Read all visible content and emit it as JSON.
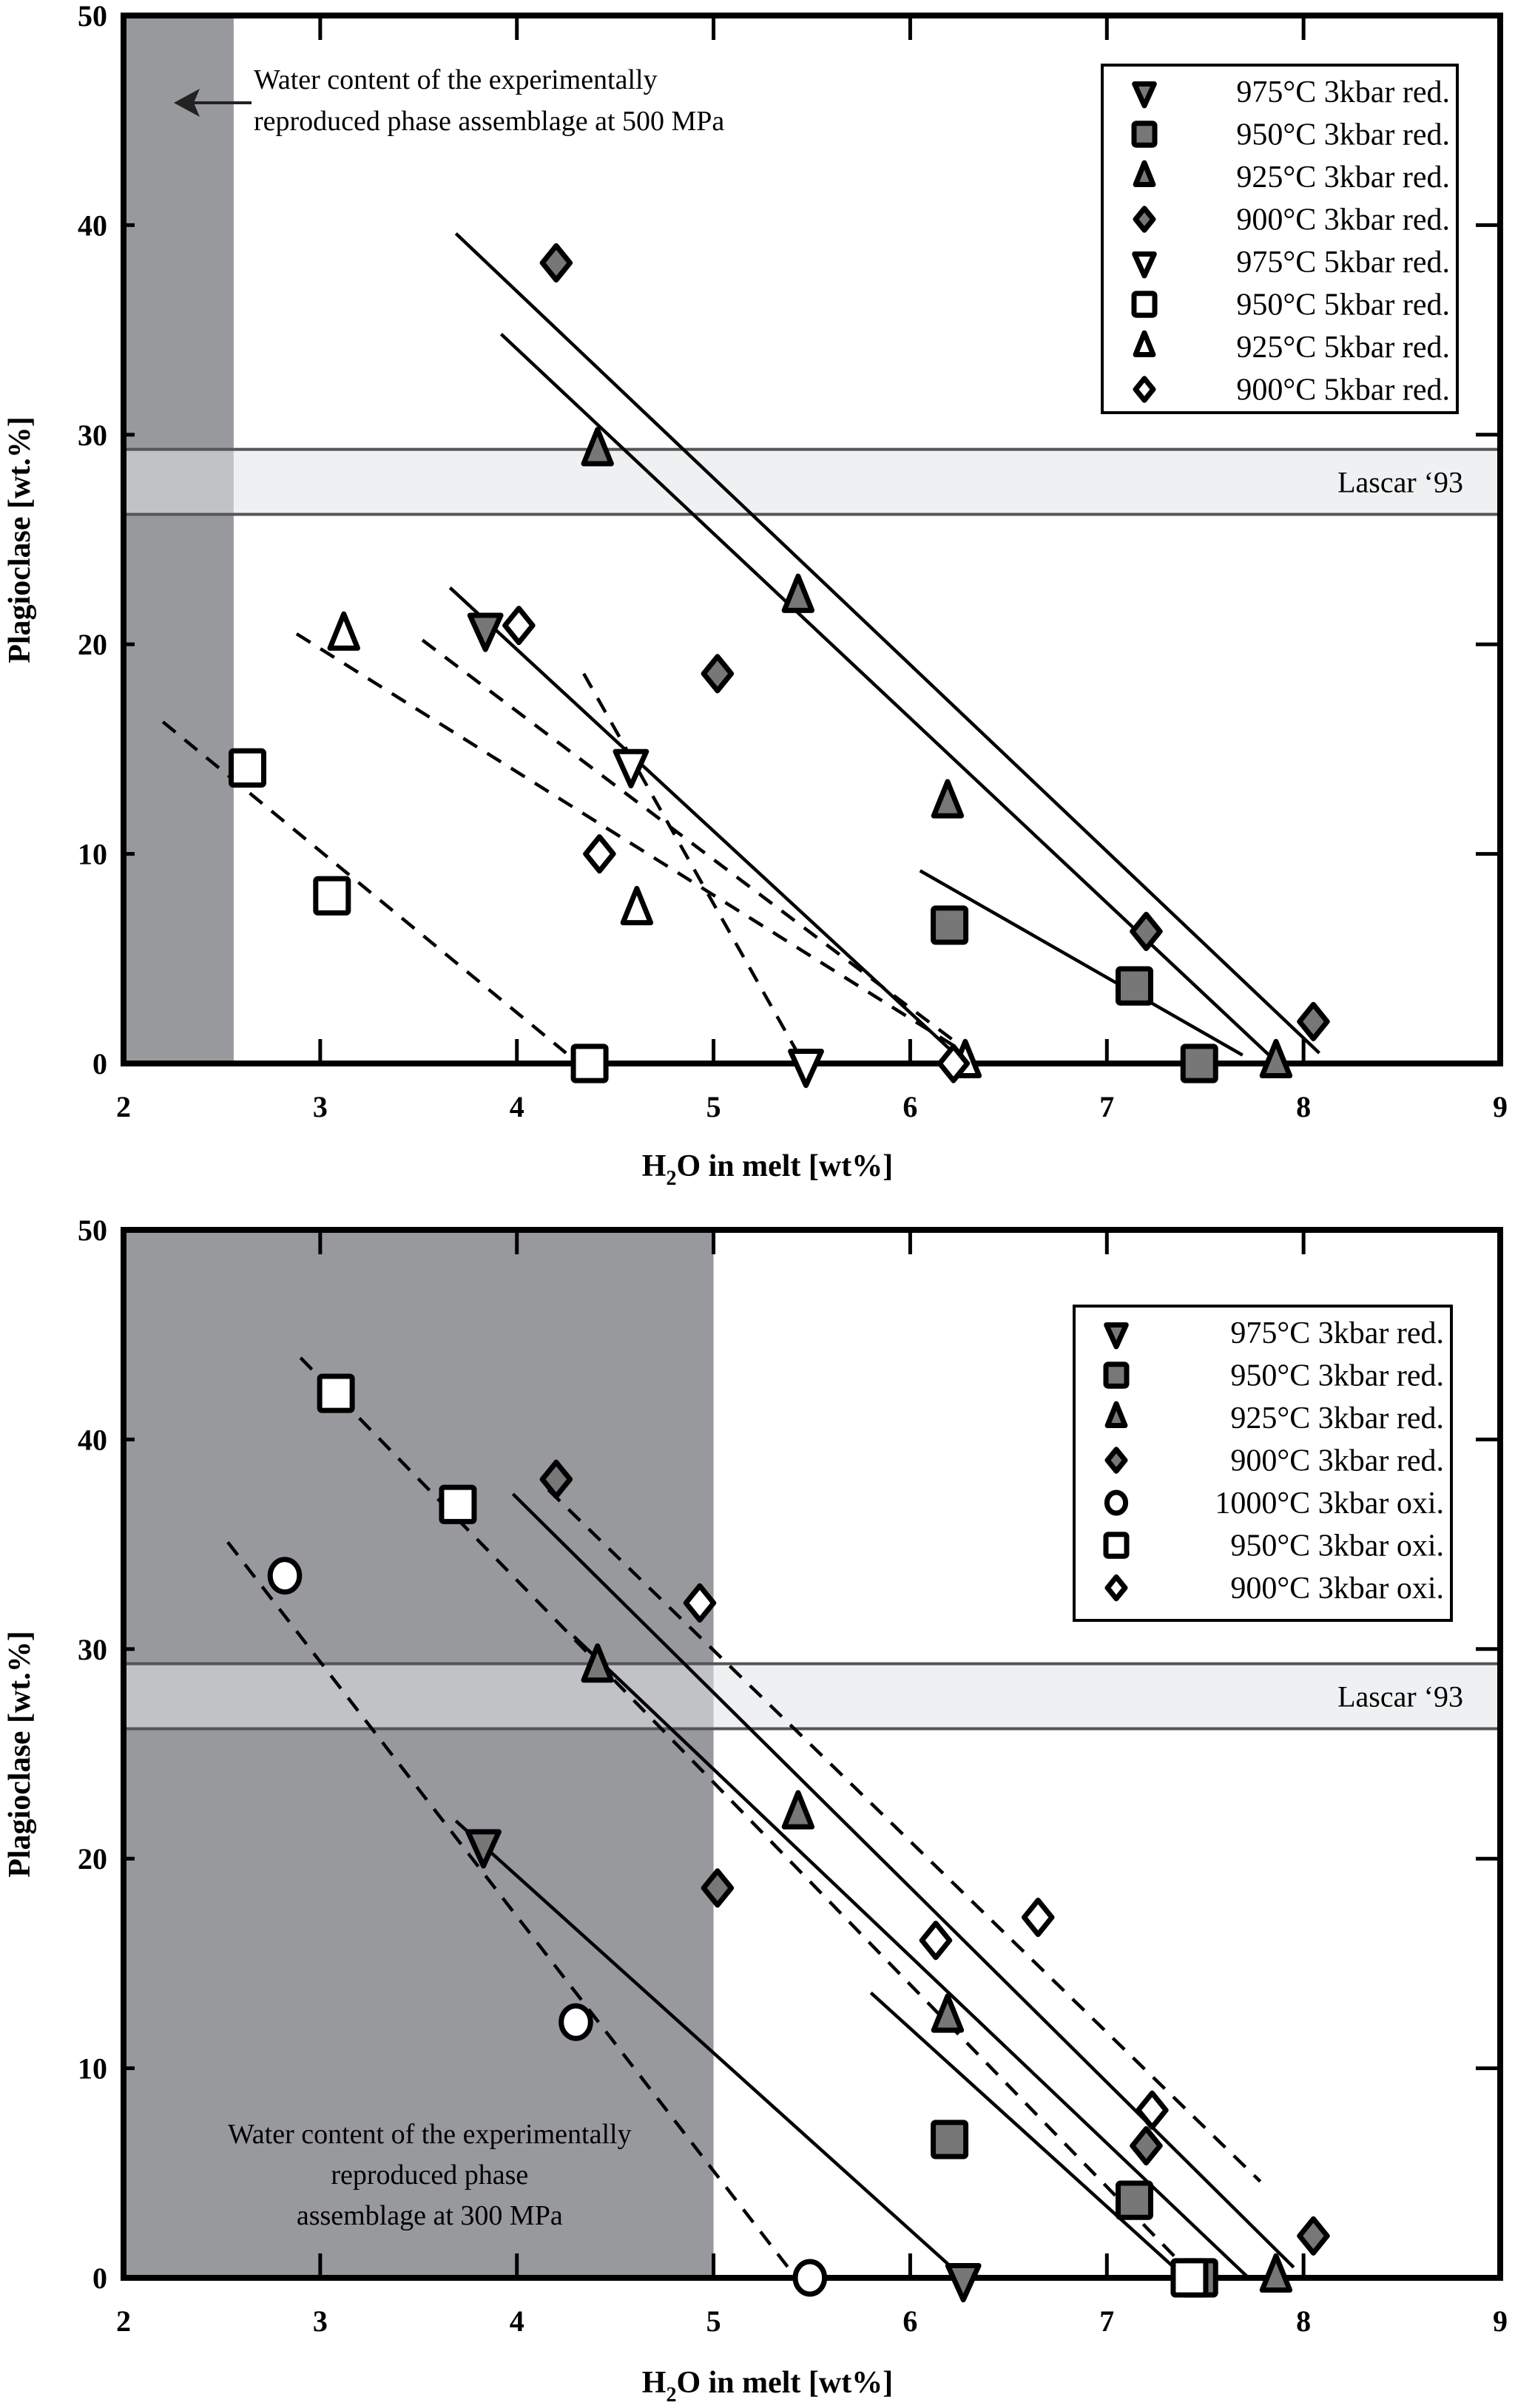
{
  "colors": {
    "water_band": "#98999d",
    "lascar_band": "#e2e3e5",
    "lascar_edge": "#555555",
    "filled_marker": "#777777",
    "open_marker": "#ffffff",
    "stroke": "#000000"
  },
  "chart_data": [
    {
      "type": "scatter",
      "title": "",
      "xlabel": "H2O in melt [wt%]",
      "xlabel_main": "H",
      "xlabel_sub": "2",
      "xlabel_rest": "O in melt [wt%]",
      "ylabel": "Plagioclase [wt.%]",
      "xlim": [
        2,
        9
      ],
      "ylim": [
        0,
        50
      ],
      "xticks": [
        "2",
        "3",
        "4",
        "5",
        "6",
        "7",
        "8",
        "9"
      ],
      "yticks": [
        "0",
        "10",
        "20",
        "30",
        "40",
        "50"
      ],
      "legend_position": "top-right",
      "water_band": {
        "x_range": [
          2,
          2.56
        ],
        "label_line1": "Water content of the experimentally",
        "label_line2": "reproduced phase assemblage at 500 MPa"
      },
      "lascar_band": {
        "y_range": [
          26.2,
          29.3
        ],
        "label": "Lascar ‘93"
      },
      "series": [
        {
          "name": "975°C 3kbar red.",
          "marker": "triangle-down",
          "fill": "filled",
          "points": [
            [
              3.84,
              20.8
            ]
          ]
        },
        {
          "name": "950°C 3kbar red.",
          "marker": "square",
          "fill": "filled",
          "points": [
            [
              6.2,
              6.6
            ],
            [
              7.14,
              3.7
            ],
            [
              7.47,
              0
            ]
          ]
        },
        {
          "name": "925°C 3kbar red.",
          "marker": "triangle-up",
          "fill": "filled",
          "points": [
            [
              4.41,
              29.2
            ],
            [
              5.43,
              22.2
            ],
            [
              6.19,
              12.4
            ],
            [
              7.86,
              0
            ]
          ]
        },
        {
          "name": "900°C 3kbar red.",
          "marker": "diamond",
          "fill": "filled",
          "points": [
            [
              4.2,
              38.2
            ],
            [
              5.02,
              18.6
            ],
            [
              7.2,
              6.3
            ],
            [
              8.05,
              2
            ]
          ]
        },
        {
          "name": "975°C 5kbar red.",
          "marker": "triangle-down",
          "fill": "open",
          "points": [
            [
              4.58,
              14.3
            ],
            [
              5.47,
              0
            ]
          ]
        },
        {
          "name": "950°C 5kbar red.",
          "marker": "square",
          "fill": "open",
          "points": [
            [
              2.63,
              14.1
            ],
            [
              3.06,
              8
            ],
            [
              4.37,
              0
            ]
          ]
        },
        {
          "name": "925°C 5kbar red.",
          "marker": "triangle-up",
          "fill": "open",
          "points": [
            [
              3.12,
              20.4
            ],
            [
              4.61,
              7.3
            ],
            [
              6.28,
              0
            ]
          ]
        },
        {
          "name": "900°C 5kbar red.",
          "marker": "diamond",
          "fill": "open",
          "points": [
            [
              4.01,
              20.9
            ],
            [
              4.42,
              10
            ],
            [
              6.22,
              0
            ]
          ]
        }
      ],
      "trend_lines": [
        {
          "style": "solid",
          "from": [
            3.69,
            39.6
          ],
          "to": [
            8.08,
            0.5
          ]
        },
        {
          "style": "solid",
          "from": [
            3.92,
            34.8
          ],
          "to": [
            7.87,
            0
          ]
        },
        {
          "style": "solid",
          "from": [
            3.66,
            22.7
          ],
          "to": [
            6.28,
            0
          ]
        },
        {
          "style": "solid",
          "from": [
            6.05,
            9.2
          ],
          "to": [
            7.69,
            0.4
          ]
        },
        {
          "style": "dashed",
          "from": [
            2.2,
            16.3
          ],
          "to": [
            4.25,
            0.5
          ]
        },
        {
          "style": "dashed",
          "from": [
            2.88,
            20.5
          ],
          "to": [
            6.23,
            0.8
          ]
        },
        {
          "style": "dashed",
          "from": [
            3.52,
            20.2
          ],
          "to": [
            6.22,
            1.1
          ]
        },
        {
          "style": "dashed",
          "from": [
            4.34,
            18.6
          ],
          "to": [
            5.44,
            0.3
          ]
        }
      ]
    },
    {
      "type": "scatter",
      "title": "",
      "xlabel": "H2O in melt [wt%]",
      "xlabel_main": "H",
      "xlabel_sub": "2",
      "xlabel_rest": "O in melt [wt%]",
      "ylabel": "Plagioclase [wt.%]",
      "xlim": [
        2,
        9
      ],
      "ylim": [
        0,
        50
      ],
      "xticks": [
        "2",
        "3",
        "4",
        "5",
        "6",
        "7",
        "8",
        "9"
      ],
      "yticks": [
        "0",
        "10",
        "20",
        "30",
        "40",
        "50"
      ],
      "legend_position": "top-right",
      "water_band": {
        "x_range": [
          2,
          5
        ],
        "label_line1": "Water content of the experimentally",
        "label_line2": "reproduced phase",
        "label_line3": "assemblage at 300 MPa"
      },
      "lascar_band": {
        "y_range": [
          26.2,
          29.3
        ],
        "label": "Lascar ‘93"
      },
      "series": [
        {
          "name": "975°C 3kbar red.",
          "marker": "triangle-down",
          "fill": "filled",
          "points": [
            [
              3.83,
              20.7
            ],
            [
              6.27,
              0
            ]
          ]
        },
        {
          "name": "950°C 3kbar red.",
          "marker": "square",
          "fill": "filled",
          "points": [
            [
              6.2,
              6.6
            ],
            [
              7.14,
              3.7
            ],
            [
              7.47,
              0
            ]
          ]
        },
        {
          "name": "925°C 3kbar red.",
          "marker": "triangle-up",
          "fill": "filled",
          "points": [
            [
              4.41,
              29.1
            ],
            [
              5.43,
              22.1
            ],
            [
              6.19,
              12.4
            ],
            [
              7.86,
              0
            ]
          ]
        },
        {
          "name": "900°C 3kbar red.",
          "marker": "diamond",
          "fill": "filled",
          "points": [
            [
              4.2,
              38.1
            ],
            [
              5.02,
              18.6
            ],
            [
              7.2,
              6.3
            ],
            [
              8.05,
              2
            ]
          ]
        },
        {
          "name": "1000°C 3kbar oxi.",
          "marker": "circle",
          "fill": "open",
          "points": [
            [
              2.82,
              33.5
            ],
            [
              4.3,
              12.2
            ],
            [
              5.49,
              0
            ]
          ]
        },
        {
          "name": "950°C 3kbar oxi.",
          "marker": "square",
          "fill": "open",
          "points": [
            [
              3.08,
              42.2
            ],
            [
              3.7,
              36.9
            ],
            [
              7.42,
              0
            ]
          ]
        },
        {
          "name": "900°C 3kbar oxi.",
          "marker": "diamond",
          "fill": "open",
          "points": [
            [
              4.93,
              32.2
            ],
            [
              6.13,
              16.1
            ],
            [
              6.65,
              17.2
            ],
            [
              7.23,
              8
            ]
          ]
        }
      ],
      "trend_lines": [
        {
          "style": "solid",
          "from": [
            3.98,
            37.4
          ],
          "to": [
            7.95,
            0.5
          ]
        },
        {
          "style": "solid",
          "from": [
            4.29,
            30.6
          ],
          "to": [
            7.72,
            0
          ]
        },
        {
          "style": "solid",
          "from": [
            5.8,
            13.6
          ],
          "to": [
            7.4,
            0
          ]
        },
        {
          "style": "solid",
          "from": [
            3.69,
            21.8
          ],
          "to": [
            6.27,
            0
          ]
        },
        {
          "style": "dashed",
          "from": [
            2.53,
            35.1
          ],
          "to": [
            5.42,
            0
          ]
        },
        {
          "style": "dashed",
          "from": [
            2.9,
            43.9
          ],
          "to": [
            7.45,
            0
          ]
        },
        {
          "style": "dashed",
          "from": [
            4.16,
            37.6
          ],
          "to": [
            7.78,
            4.6
          ]
        }
      ]
    }
  ]
}
